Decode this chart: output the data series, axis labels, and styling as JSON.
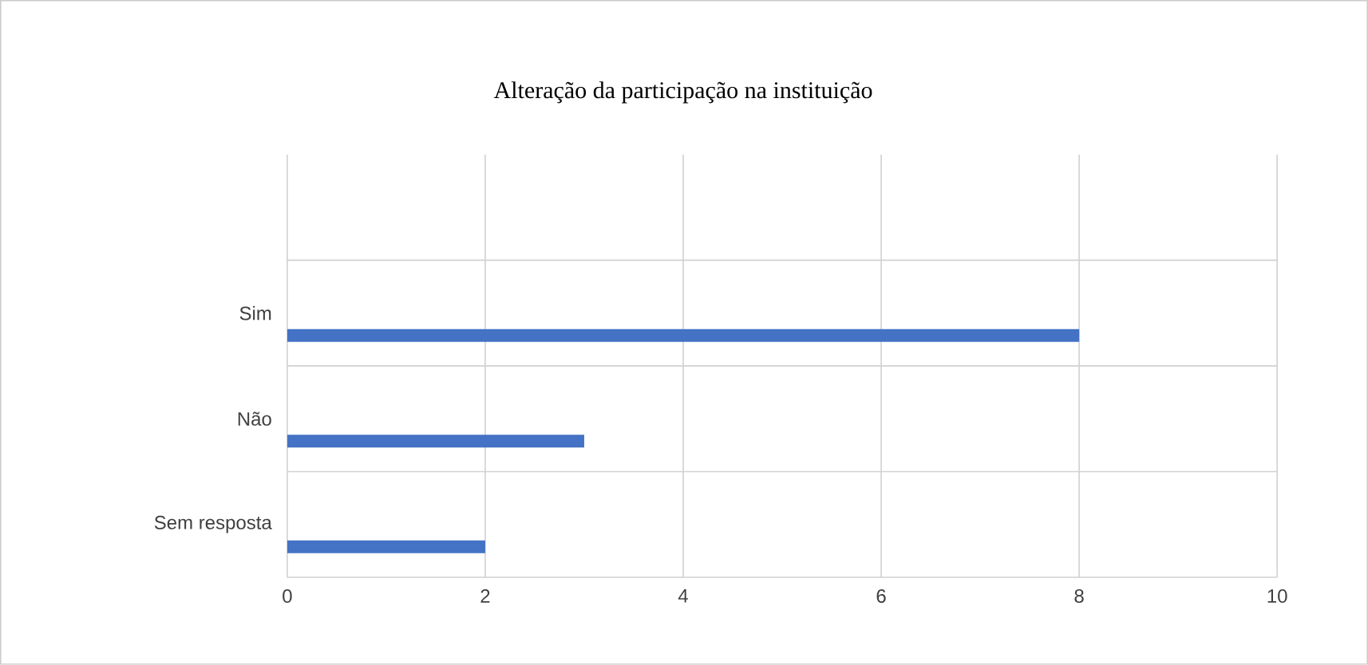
{
  "chart_data": {
    "type": "bar",
    "orientation": "horizontal",
    "title": "Alteração da participação na instituição",
    "categories": [
      null,
      "Sim",
      "Não",
      "Sem resposta"
    ],
    "values": [
      null,
      8,
      3,
      2
    ],
    "color": "#4472c4",
    "xlim": [
      0,
      10
    ],
    "xticks": [
      0,
      2,
      4,
      6,
      8,
      10
    ],
    "grid": true
  }
}
